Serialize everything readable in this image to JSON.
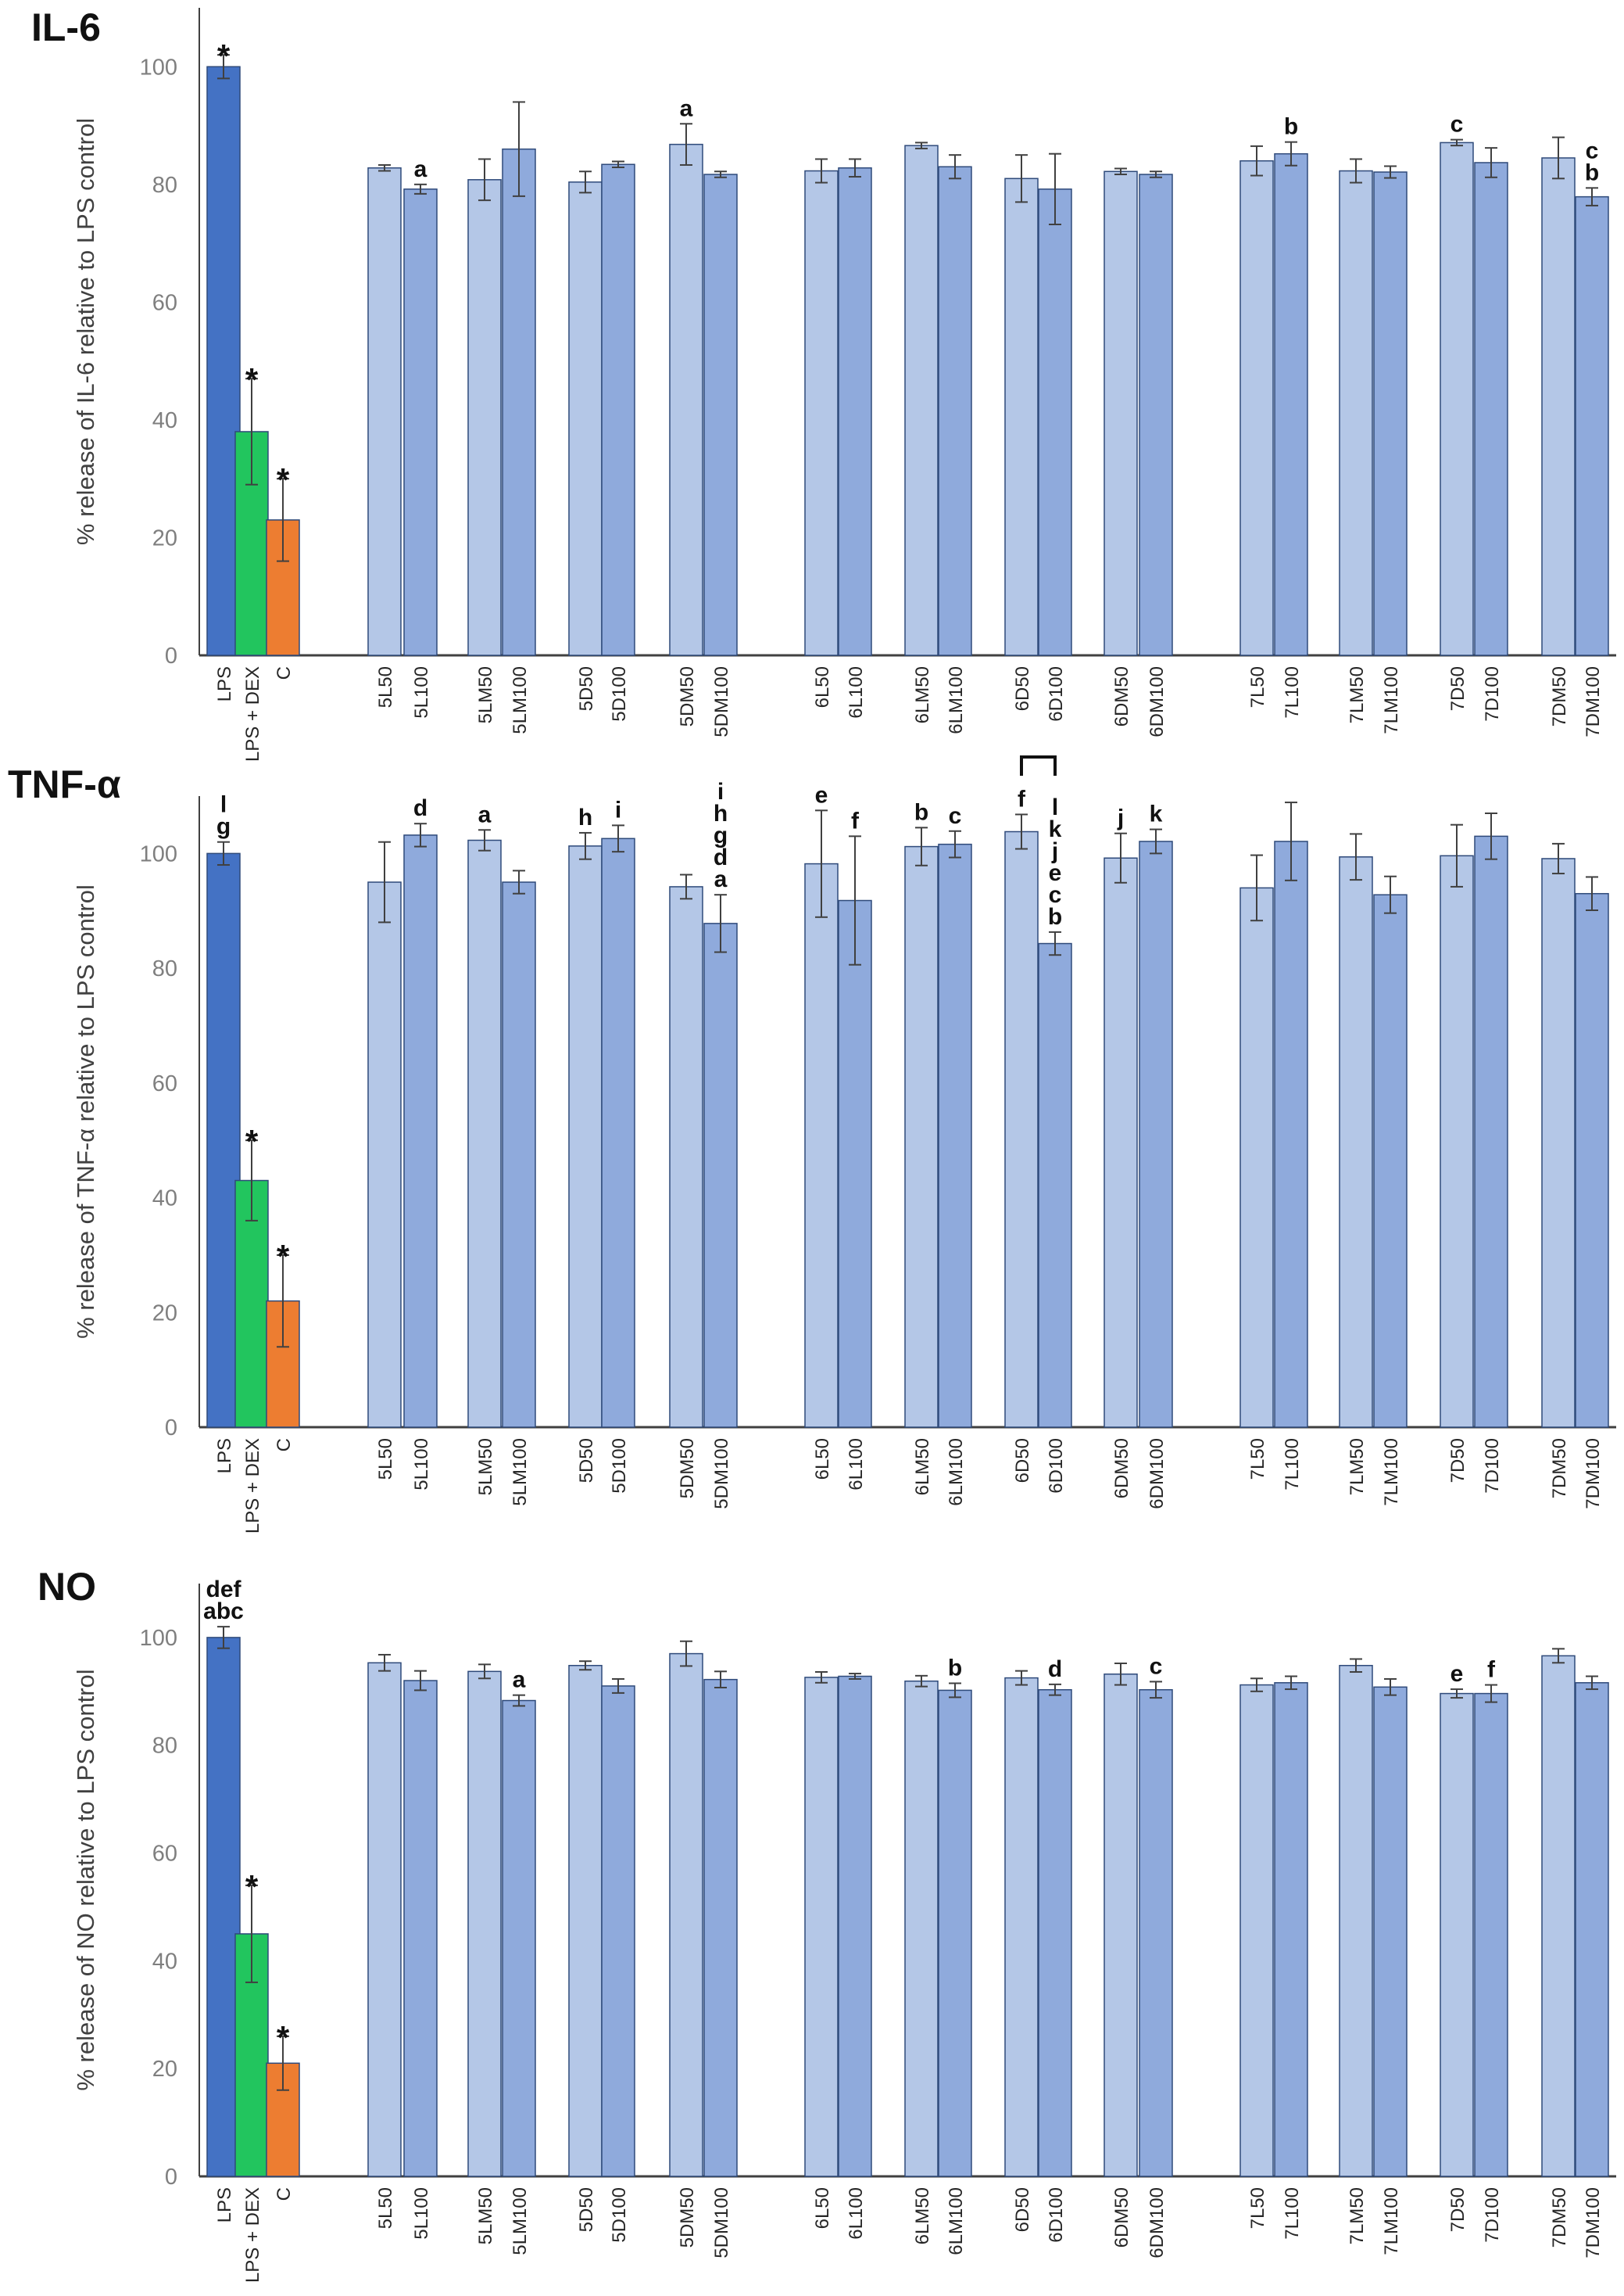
{
  "colors": {
    "LPS": "#4472c4",
    "LPS + DEX": "#22c55e",
    "C": "#ed7d31",
    "dose50": "#b4c7e7",
    "dose100": "#8faadc",
    "error_bar": "#404040",
    "axis": "#404040"
  },
  "chart_data": [
    {
      "type": "bar",
      "title": "IL-6",
      "ylabel": "% release of IL-6 relative to LPS control",
      "ylim": [
        0,
        110
      ],
      "yticks": [
        0,
        20,
        40,
        60,
        80,
        100
      ],
      "grid": false,
      "categories": [
        "LPS",
        "LPS + DEX",
        "C",
        "5L50",
        "5L100",
        "5LM50",
        "5LM100",
        "5D50",
        "5D100",
        "5DM50",
        "5DM100",
        "6L50",
        "6L100",
        "6LM50",
        "6LM100",
        "6D50",
        "6D100",
        "6DM50",
        "6DM100",
        "7L50",
        "7L100",
        "7LM50",
        "7LM100",
        "7D50",
        "7D100",
        "7DM50",
        "7DM100"
      ],
      "values": [
        100,
        38,
        23,
        82.8,
        79.2,
        80.8,
        86.0,
        80.4,
        83.4,
        86.8,
        81.7,
        82.3,
        82.8,
        86.6,
        83.0,
        81.0,
        79.2,
        82.2,
        81.7,
        84.0,
        85.2,
        82.3,
        82.1,
        87.1,
        83.7,
        84.5,
        77.9
      ],
      "errors": [
        2,
        9,
        7,
        0.5,
        0.8,
        3.5,
        8,
        1.8,
        0.5,
        3.5,
        0.5,
        2,
        1.5,
        0.5,
        2,
        4,
        6,
        0.5,
        0.5,
        2.5,
        2,
        2,
        1,
        0.5,
        2.5,
        3.5,
        1.5
      ],
      "labels": [
        "*",
        "*",
        "*",
        "",
        "a",
        "",
        "",
        "",
        "",
        "a",
        "",
        "",
        "",
        "",
        "",
        "",
        "",
        "",
        "",
        "",
        "b",
        "",
        "",
        "c",
        "",
        "",
        "c b"
      ]
    },
    {
      "type": "bar",
      "title": "TNF-α",
      "ylabel": "% release of TNF-α relative to LPS control",
      "ylim": [
        0,
        110
      ],
      "yticks": [
        0,
        20,
        40,
        60,
        80,
        100
      ],
      "grid": false,
      "categories": [
        "LPS",
        "LPS + DEX",
        "C",
        "5L50",
        "5L100",
        "5LM50",
        "5LM100",
        "5D50",
        "5D100",
        "5DM50",
        "5DM100",
        "6L50",
        "6L100",
        "6LM50",
        "6LM100",
        "6D50",
        "6D100",
        "6DM50",
        "6DM100",
        "7L50",
        "7L100",
        "7LM50",
        "7LM100",
        "7D50",
        "7D100",
        "7DM50",
        "7DM100"
      ],
      "values": [
        100,
        43,
        22,
        95.0,
        103.2,
        102.3,
        95.0,
        101.3,
        102.6,
        94.2,
        87.8,
        98.2,
        91.8,
        101.2,
        101.6,
        103.8,
        84.3,
        99.2,
        102.1,
        94.0,
        102.1,
        99.4,
        92.8,
        99.6,
        103.0,
        99.1,
        93.0
      ],
      "errors": [
        2,
        7,
        8,
        7,
        2,
        1.8,
        2,
        2.3,
        2.3,
        2.1,
        5,
        9.3,
        11.2,
        3.3,
        2.3,
        3,
        2,
        4.3,
        2.1,
        5.7,
        6.8,
        4,
        3.2,
        5.4,
        4,
        2.6,
        2.9
      ],
      "labels": [
        "l g",
        "*",
        "*",
        "",
        "d",
        "a",
        "",
        "h",
        "i",
        "",
        "i h g d a",
        "e",
        "f",
        "b",
        "c",
        "f",
        "l k j e c b",
        "j",
        "k",
        "",
        "",
        "",
        "",
        "",
        "",
        "",
        ""
      ]
    },
    {
      "type": "bar",
      "title": "NO",
      "ylabel": "% release of NO relative to LPS control",
      "ylim": [
        0,
        110
      ],
      "yticks": [
        0,
        20,
        40,
        60,
        80,
        100
      ],
      "grid": false,
      "categories": [
        "LPS",
        "LPS + DEX",
        "C",
        "5L50",
        "5L100",
        "5LM50",
        "5LM100",
        "5D50",
        "5D100",
        "5DM50",
        "5DM100",
        "6L50",
        "6L100",
        "6LM50",
        "6LM100",
        "6D50",
        "6D100",
        "6DM50",
        "6DM100",
        "7L50",
        "7L100",
        "7LM50",
        "7LM100",
        "7D50",
        "7D100",
        "7DM50",
        "7DM100"
      ],
      "values": [
        100,
        45,
        21,
        95.3,
        92.0,
        93.7,
        88.3,
        94.8,
        91.0,
        97.0,
        92.2,
        92.6,
        92.8,
        91.9,
        90.2,
        92.5,
        90.3,
        93.2,
        90.3,
        91.2,
        91.6,
        94.8,
        90.8,
        89.6,
        89.6,
        96.6,
        91.6
      ],
      "errors": [
        2,
        9,
        5,
        1.5,
        1.8,
        1.3,
        1,
        0.8,
        1.3,
        2.3,
        1.5,
        1,
        0.5,
        1,
        1.3,
        1.3,
        1,
        2,
        1.5,
        1.2,
        1.2,
        1.2,
        1.5,
        0.8,
        1.6,
        1.3,
        1.2
      ],
      "labels": [
        "def abc",
        "*",
        "*",
        "",
        "",
        "",
        "a",
        "",
        "",
        "",
        "",
        "",
        "",
        "",
        "b",
        "",
        "d",
        "",
        "c",
        "",
        "",
        "",
        "",
        "e",
        "f",
        "",
        ""
      ]
    }
  ]
}
